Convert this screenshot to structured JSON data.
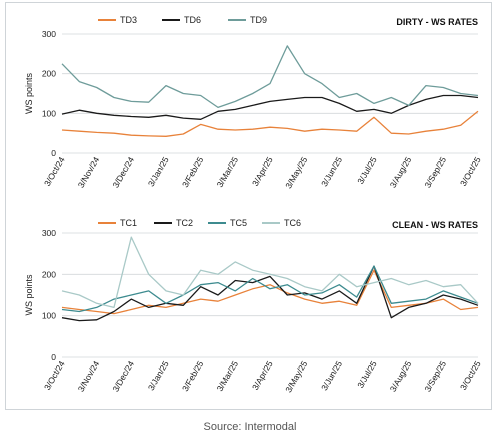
{
  "source_text": "Source: Intermodal",
  "chart_data": [
    {
      "type": "line",
      "title": "DIRTY - WS RATES",
      "ylabel": "WS points",
      "ylim": [
        0,
        300
      ],
      "yticks": [
        0,
        100,
        200,
        300
      ],
      "grid": true,
      "legend_position": "top-left",
      "x_tick_labels": [
        "3/Oct/24",
        "3/Nov/24",
        "3/Dec/24",
        "3/Jan/25",
        "3/Feb/25",
        "3/Mar/25",
        "3/Apr/25",
        "3/May/25",
        "3/Jun/25",
        "3/Jul/25",
        "3/Aug/25",
        "3/Sep/25",
        "3/Oct/25"
      ],
      "x": [
        "3/Oct/24",
        "17/Oct/24",
        "3/Nov/24",
        "17/Nov/24",
        "3/Dec/24",
        "17/Dec/24",
        "3/Jan/25",
        "17/Jan/25",
        "3/Feb/25",
        "17/Feb/25",
        "3/Mar/25",
        "17/Mar/25",
        "3/Apr/25",
        "17/Apr/25",
        "3/May/25",
        "17/May/25",
        "3/Jun/25",
        "17/Jun/25",
        "3/Jul/25",
        "17/Jul/25",
        "3/Aug/25",
        "17/Aug/25",
        "3/Sep/25",
        "17/Sep/25",
        "3/Oct/25"
      ],
      "series": [
        {
          "name": "TD3",
          "color": "#e8823a",
          "values": [
            58,
            55,
            52,
            50,
            45,
            43,
            42,
            48,
            72,
            60,
            58,
            60,
            65,
            62,
            55,
            60,
            58,
            55,
            90,
            50,
            48,
            55,
            60,
            70,
            105
          ]
        },
        {
          "name": "TD6",
          "color": "#1a1a1a",
          "values": [
            98,
            108,
            100,
            95,
            92,
            90,
            95,
            88,
            85,
            105,
            110,
            120,
            130,
            135,
            140,
            140,
            125,
            105,
            110,
            100,
            120,
            135,
            145,
            145,
            140
          ]
        },
        {
          "name": "TD9",
          "color": "#6e9c9a",
          "values": [
            225,
            180,
            165,
            140,
            130,
            128,
            170,
            150,
            145,
            115,
            130,
            150,
            175,
            270,
            200,
            175,
            140,
            150,
            125,
            140,
            120,
            170,
            165,
            150,
            145
          ]
        }
      ]
    },
    {
      "type": "line",
      "title": "CLEAN - WS RATES",
      "ylabel": "WS points",
      "ylim": [
        0,
        300
      ],
      "yticks": [
        0,
        100,
        200,
        300
      ],
      "grid": true,
      "legend_position": "top-left",
      "x_tick_labels": [
        "3/Oct/24",
        "3/Nov/24",
        "3/Dec/24",
        "3/Jan/25",
        "3/Feb/25",
        "3/Mar/25",
        "3/Apr/25",
        "3/May/25",
        "3/Jun/25",
        "3/Jul/25",
        "3/Aug/25",
        "3/Sep/25",
        "3/Oct/25"
      ],
      "x": [
        "3/Oct/24",
        "17/Oct/24",
        "3/Nov/24",
        "17/Nov/24",
        "3/Dec/24",
        "17/Dec/24",
        "3/Jan/25",
        "17/Jan/25",
        "3/Feb/25",
        "17/Feb/25",
        "3/Mar/25",
        "17/Mar/25",
        "3/Apr/25",
        "17/Apr/25",
        "3/May/25",
        "17/May/25",
        "3/Jun/25",
        "17/Jun/25",
        "3/Jul/25",
        "17/Jul/25",
        "3/Aug/25",
        "17/Aug/25",
        "3/Sep/25",
        "17/Sep/25",
        "3/Oct/25"
      ],
      "series": [
        {
          "name": "TC1",
          "color": "#e8823a",
          "values": [
            120,
            115,
            110,
            105,
            115,
            125,
            120,
            130,
            140,
            135,
            150,
            165,
            175,
            155,
            140,
            130,
            135,
            125,
            210,
            120,
            125,
            130,
            140,
            115,
            120
          ]
        },
        {
          "name": "TC2",
          "color": "#1a1a1a",
          "values": [
            95,
            88,
            90,
            110,
            140,
            120,
            130,
            125,
            170,
            150,
            185,
            180,
            195,
            150,
            155,
            140,
            160,
            130,
            220,
            95,
            120,
            130,
            150,
            140,
            125
          ]
        },
        {
          "name": "TC5",
          "color": "#3d8b8f",
          "values": [
            115,
            110,
            120,
            140,
            150,
            160,
            130,
            150,
            175,
            180,
            160,
            190,
            165,
            175,
            150,
            155,
            175,
            145,
            220,
            130,
            135,
            140,
            160,
            145,
            130
          ]
        },
        {
          "name": "TC6",
          "color": "#a9c9c7",
          "values": [
            160,
            150,
            130,
            120,
            290,
            200,
            160,
            150,
            210,
            200,
            230,
            210,
            200,
            190,
            170,
            160,
            200,
            170,
            180,
            190,
            175,
            185,
            170,
            175,
            130
          ]
        }
      ]
    }
  ]
}
